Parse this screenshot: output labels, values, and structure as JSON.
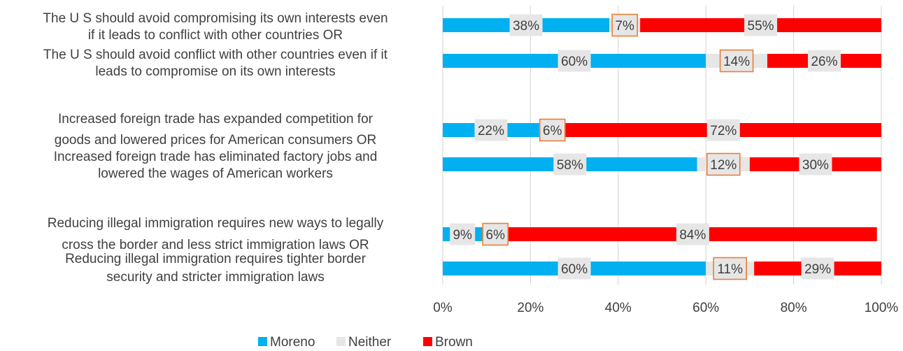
{
  "chart_data": {
    "type": "bar",
    "orientation": "horizontal",
    "stacked": true,
    "categories": [
      "The U S  should avoid compromising its own interests even if it leads to conflict with other countries OR",
      "The U S  should avoid conflict with other countries even if it leads to compromise on its own interests",
      "Increased foreign trade has expanded competition for goods and lowered prices for American consumers OR",
      "Increased foreign trade has eliminated factory jobs and lowered the wages of American workers",
      "Reducing illegal immigration requires new ways to legally cross the border and less strict immigration laws OR",
      "Reducing illegal immigration requires tighter border security and stricter immigration laws"
    ],
    "category_lines": [
      [
        "The U S  should avoid compromising its own interests even",
        "if it leads to conflict with other countries OR"
      ],
      [
        "The U S  should avoid conflict with other countries even if it",
        "leads to compromise on its own interests"
      ],
      [
        "Increased foreign trade has expanded competition for",
        "goods and lowered prices for American consumers OR"
      ],
      [
        "Increased foreign trade has eliminated factory jobs and",
        "lowered the wages of American workers"
      ],
      [
        "Reducing illegal immigration requires new ways to legally",
        "cross the border and less strict immigration laws OR"
      ],
      [
        "Reducing illegal immigration requires tighter border",
        "security and stricter immigration laws"
      ]
    ],
    "series": [
      {
        "name": "Moreno",
        "color": "#00B0F0",
        "values": [
          38,
          60,
          22,
          58,
          9,
          60
        ]
      },
      {
        "name": "Neither",
        "color": "#E6E6E6",
        "values": [
          7,
          14,
          6,
          12,
          6,
          11
        ]
      },
      {
        "name": "Brown",
        "color": "#FF0000",
        "values": [
          55,
          26,
          72,
          30,
          84,
          29
        ]
      }
    ],
    "xlim": [
      0,
      100
    ],
    "x_ticks": [
      "0%",
      "20%",
      "40%",
      "60%",
      "80%",
      "100%"
    ],
    "grid": true,
    "legend_position": "bottom",
    "highlight_series": "Neither",
    "highlight_color": "#ED7D31"
  }
}
